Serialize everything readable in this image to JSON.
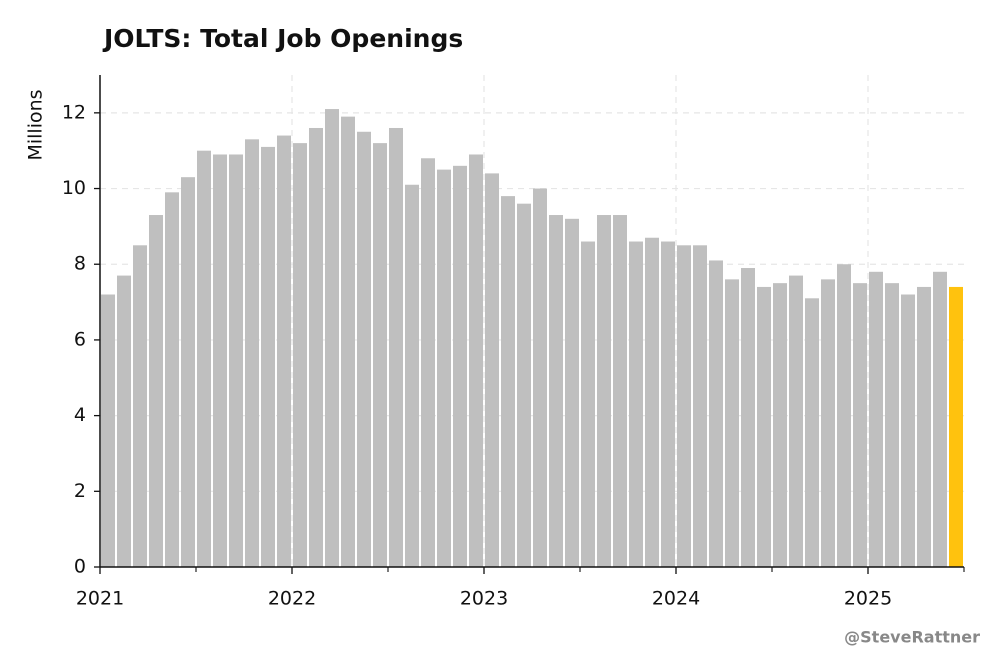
{
  "chart_data": {
    "type": "bar",
    "title": "JOLTS: Total Job Openings",
    "y_label": "Millions",
    "source": "@SteveRattner",
    "categories": [
      "2021",
      null,
      null,
      null,
      null,
      null,
      null,
      null,
      null,
      null,
      null,
      null,
      "2022",
      null,
      null,
      null,
      null,
      null,
      null,
      null,
      null,
      null,
      null,
      null,
      "2023",
      null,
      null,
      null,
      null,
      null,
      null,
      null,
      null,
      null,
      null,
      null,
      "2024",
      null,
      null,
      null,
      null,
      null,
      null,
      null,
      null,
      null,
      null,
      null,
      "2025",
      null,
      null,
      null,
      null,
      null
    ],
    "values": [
      7.2,
      7.7,
      8.5,
      9.3,
      9.9,
      10.3,
      11.0,
      10.9,
      10.9,
      11.3,
      11.1,
      11.4,
      11.2,
      11.6,
      12.1,
      11.9,
      11.5,
      11.2,
      11.6,
      10.1,
      10.8,
      10.5,
      10.6,
      10.9,
      10.4,
      9.8,
      9.6,
      10.0,
      9.3,
      9.2,
      8.6,
      9.3,
      9.3,
      8.6,
      8.7,
      8.6,
      8.5,
      8.5,
      8.1,
      7.6,
      7.9,
      7.4,
      7.5,
      7.7,
      7.1,
      7.6,
      8.0,
      7.5,
      7.8,
      7.5,
      7.2,
      7.4,
      7.8,
      7.4
    ],
    "color": "#bfbfbf",
    "highlight_color": "#ffc20e",
    "highlight_last": true,
    "ylim": [
      0,
      13
    ],
    "yticks": [
      0,
      2,
      4,
      6,
      8,
      10,
      12
    ],
    "grid": true
  }
}
